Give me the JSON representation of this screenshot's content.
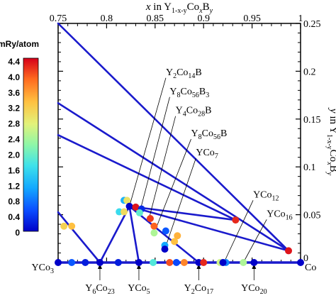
{
  "chart_data": {
    "type": "scatter",
    "xlabel_top": {
      "v": "x",
      "in": " in Y",
      "s1": "1-x-y",
      "m": "Co",
      "s2": "x",
      "b": "B",
      "s3": "y"
    },
    "ylabel_right": {
      "v": "y",
      "in": " in Y",
      "s1": "1-x-y",
      "m": "Co",
      "s2": "x",
      "b": "B",
      "s3": "y"
    },
    "xlim": [
      0.75,
      1.0
    ],
    "ylim": [
      0,
      0.25
    ],
    "x_ticks": [
      "0.75",
      "0.8",
      "0.85",
      "0.9",
      "0.95",
      "1"
    ],
    "y_ticks": [
      "0",
      "0.05",
      "0.1",
      "0.15",
      "0.2",
      "0.25"
    ],
    "colorbar": {
      "title": "mRy/atom",
      "range": [
        0,
        4.4
      ],
      "tick_labels": [
        "4.4",
        "4.0",
        "3.6",
        "3.2",
        "2.8",
        "2.4",
        "2.0",
        "1.6",
        "1.2",
        "0.8",
        "0.4",
        "0"
      ]
    },
    "tie_line_color": "#1a1acc",
    "tie_lines": [
      [
        [
          0.75,
          0.25
        ],
        [
          0.9876,
          0.0123
        ]
      ],
      [
        [
          0.75,
          0.1667
        ],
        [
          0.9875,
          0.0125
        ]
      ],
      [
        [
          0.75,
          0.1333
        ],
        [
          0.9333,
          0.0444
        ]
      ],
      [
        [
          0.75,
          0.0526
        ],
        [
          0.7931,
          0
        ]
      ],
      [
        [
          0.7931,
          0
        ],
        [
          0.8235,
          0.0588
        ]
      ],
      [
        [
          0.8235,
          0.0588
        ],
        [
          0.9876,
          0.0123
        ]
      ],
      [
        [
          0.8235,
          0.0588
        ],
        [
          0.9333,
          0.0444
        ]
      ],
      [
        [
          0.8235,
          0.0588
        ],
        [
          0.8333,
          0
        ]
      ],
      [
        [
          0.8235,
          0.0588
        ],
        [
          0.895,
          0
        ]
      ]
    ],
    "points": [
      {
        "x": 0.75,
        "y": 0,
        "value": 0
      },
      {
        "x": 0.764,
        "y": 0,
        "value": 0.6
      },
      {
        "x": 0.778,
        "y": 0,
        "value": 0.2
      },
      {
        "x": 0.7931,
        "y": 0,
        "value": 0
      },
      {
        "x": 0.812,
        "y": 0,
        "value": 0.2
      },
      {
        "x": 0.8333,
        "y": 0,
        "value": 0
      },
      {
        "x": 0.848,
        "y": 0,
        "value": 1.8
      },
      {
        "x": 0.865,
        "y": 0,
        "value": 4.0
      },
      {
        "x": 0.872,
        "y": 0,
        "value": 0.5
      },
      {
        "x": 0.88,
        "y": 0,
        "value": 3.7
      },
      {
        "x": 0.895,
        "y": 0,
        "value": 0
      },
      {
        "x": 0.917,
        "y": 0,
        "value": 2.6
      },
      {
        "x": 0.923,
        "y": 0,
        "value": 0.9
      },
      {
        "x": 0.941,
        "y": 0,
        "value": 2.4
      },
      {
        "x": 0.952,
        "y": 0,
        "value": 0
      },
      {
        "x": 0.9,
        "y": 0,
        "value": 4.2
      },
      {
        "x": 0.92,
        "y": 0,
        "value": 0
      },
      {
        "x": 1.0,
        "y": 0,
        "value": 0
      },
      {
        "x": 0.756,
        "y": 0.038,
        "value": 3.1
      },
      {
        "x": 0.764,
        "y": 0.038,
        "value": 3.3
      },
      {
        "x": 0.818,
        "y": 0.065,
        "value": 1.2
      },
      {
        "x": 0.821,
        "y": 0.065,
        "value": 2.9
      },
      {
        "x": 0.813,
        "y": 0.053,
        "value": 1.6
      },
      {
        "x": 0.818,
        "y": 0.053,
        "value": 3.0
      },
      {
        "x": 0.8235,
        "y": 0.0588,
        "value": 0
      },
      {
        "x": 0.83,
        "y": 0.058,
        "value": 4.3
      },
      {
        "x": 0.836,
        "y": 0.056,
        "value": 0.3
      },
      {
        "x": 0.834,
        "y": 0.052,
        "value": 1.9
      },
      {
        "x": 0.845,
        "y": 0.046,
        "value": 4.1
      },
      {
        "x": 0.849,
        "y": 0.038,
        "value": 3.9
      },
      {
        "x": 0.861,
        "y": 0.033,
        "value": 0.6
      },
      {
        "x": 0.849,
        "y": 0.031,
        "value": 2.4
      },
      {
        "x": 0.873,
        "y": 0.028,
        "value": 3.4
      },
      {
        "x": 0.86,
        "y": 0.018,
        "value": 1.1
      },
      {
        "x": 0.86,
        "y": 0.014,
        "value": 0
      },
      {
        "x": 0.87,
        "y": 0.022,
        "value": 3.3
      },
      {
        "x": 0.933,
        "y": 0.0444,
        "value": 4.2
      },
      {
        "x": 0.9876,
        "y": 0.0123,
        "value": 4.3
      }
    ],
    "phase_labels_top": [
      {
        "parts": [
          [
            "Y",
            "base"
          ],
          [
            "2",
            "sub"
          ],
          [
            "Co",
            "base"
          ],
          [
            "14",
            "sub"
          ],
          [
            "B",
            "base"
          ]
        ],
        "x": 0.864,
        "y": 0.196,
        "tx": 0.8235,
        "ty": 0.0588
      },
      {
        "parts": [
          [
            "Y",
            "base"
          ],
          [
            "8",
            "sub"
          ],
          [
            "Co",
            "base"
          ],
          [
            "56",
            "sub"
          ],
          [
            "B",
            "base"
          ],
          [
            "3",
            "sub"
          ]
        ],
        "x": 0.868,
        "y": 0.176,
        "tx": 0.834,
        "ty": 0.052
      },
      {
        "parts": [
          [
            "Y",
            "base"
          ],
          [
            "4",
            "sub"
          ],
          [
            "Co",
            "base"
          ],
          [
            "28",
            "sub"
          ],
          [
            "B",
            "base"
          ]
        ],
        "x": 0.874,
        "y": 0.156,
        "tx": 0.8435,
        "ty": 0.045
      },
      {
        "parts": [
          [
            "Y",
            "base"
          ],
          [
            "8",
            "sub"
          ],
          [
            "Co",
            "base"
          ],
          [
            "56",
            "sub"
          ],
          [
            "B",
            "base"
          ]
        ],
        "x": 0.89,
        "y": 0.132,
        "tx": 0.851,
        "ty": 0.036
      },
      {
        "parts": [
          [
            "YCo",
            "base"
          ],
          [
            "7",
            "sub"
          ]
        ],
        "x": 0.895,
        "y": 0.112,
        "tx": 0.86,
        "ty": 0.014
      },
      {
        "parts": [
          [
            "YCo",
            "base"
          ],
          [
            "12",
            "sub"
          ]
        ],
        "x": 0.954,
        "y": 0.068,
        "tx": 0.921,
        "ty": 0
      },
      {
        "parts": [
          [
            "YCo",
            "base"
          ],
          [
            "16",
            "sub"
          ]
        ],
        "x": 0.968,
        "y": 0.048,
        "tx": 0.941,
        "ty": 0
      }
    ],
    "phase_labels_bottom": [
      {
        "parts": [
          [
            "YCo",
            "base"
          ],
          [
            "3",
            "sub"
          ]
        ],
        "x": 0.75,
        "anchor": "end"
      },
      {
        "parts": [
          [
            "Y",
            "base"
          ],
          [
            "6",
            "sub"
          ],
          [
            "Co",
            "base"
          ],
          [
            "23",
            "sub"
          ]
        ],
        "x": 0.7931,
        "anchor": "middle"
      },
      {
        "parts": [
          [
            "YCo",
            "base"
          ],
          [
            "5",
            "sub"
          ]
        ],
        "x": 0.8333,
        "anchor": "middle"
      },
      {
        "parts": [
          [
            "Y",
            "base"
          ],
          [
            "2",
            "sub"
          ],
          [
            "Co",
            "base"
          ],
          [
            "17",
            "sub"
          ]
        ],
        "x": 0.895,
        "anchor": "middle"
      },
      {
        "parts": [
          [
            "YCo",
            "base"
          ],
          [
            "20",
            "sub"
          ]
        ],
        "x": 0.952,
        "anchor": "middle"
      },
      {
        "parts": [
          [
            "Co",
            "base"
          ]
        ],
        "x": 1.0,
        "anchor": "start"
      }
    ]
  }
}
